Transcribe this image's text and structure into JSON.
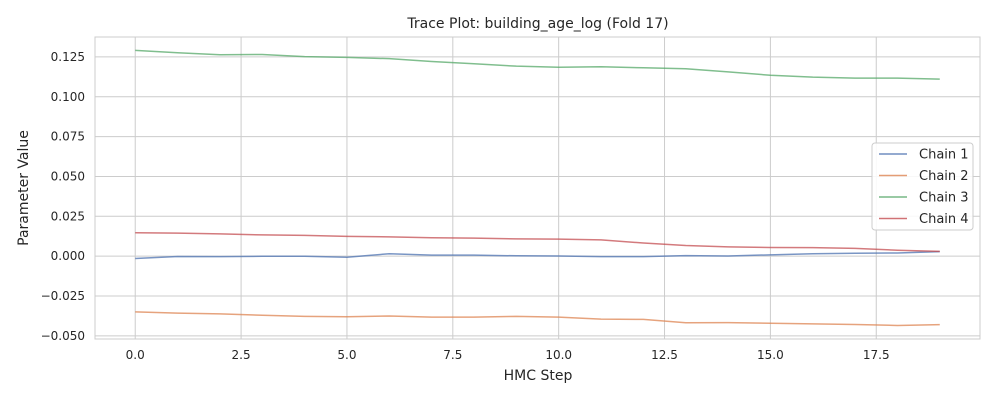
{
  "chart_data": {
    "type": "line",
    "title": "Trace Plot: building_age_log (Fold 17)",
    "xlabel": "HMC Step",
    "ylabel": "Parameter Value",
    "xlim": [
      -0.95,
      19.95
    ],
    "ylim": [
      -0.052,
      0.1375
    ],
    "xticks": [
      0.0,
      2.5,
      5.0,
      7.5,
      10.0,
      12.5,
      15.0,
      17.5
    ],
    "xtick_labels": [
      "0.0",
      "2.5",
      "5.0",
      "7.5",
      "10.0",
      "12.5",
      "15.0",
      "17.5"
    ],
    "yticks": [
      -0.05,
      -0.025,
      0.0,
      0.025,
      0.05,
      0.075,
      0.1,
      0.125
    ],
    "ytick_labels": [
      "−0.050",
      "−0.025",
      "0.000",
      "0.025",
      "0.050",
      "0.075",
      "0.100",
      "0.125"
    ],
    "grid": true,
    "legend_position": "center-right",
    "x": [
      0,
      1,
      2,
      3,
      4,
      5,
      6,
      7,
      8,
      9,
      10,
      11,
      12,
      13,
      14,
      15,
      16,
      17,
      18,
      19
    ],
    "series": [
      {
        "name": "Chain 1",
        "color": "#4c72b0",
        "values": [
          -0.0015,
          -0.0002,
          -0.0003,
          -0.0001,
          -0.0001,
          -0.0007,
          0.0015,
          0.0006,
          0.0006,
          0.0002,
          0.0001,
          -0.0003,
          -0.0003,
          0.0003,
          0.0001,
          0.0008,
          0.0015,
          0.0018,
          0.002,
          0.0028
        ]
      },
      {
        "name": "Chain 2",
        "color": "#dd8452",
        "values": [
          -0.035,
          -0.0358,
          -0.0362,
          -0.0371,
          -0.0378,
          -0.038,
          -0.0376,
          -0.0383,
          -0.0383,
          -0.0378,
          -0.0383,
          -0.0395,
          -0.0397,
          -0.0418,
          -0.0417,
          -0.0421,
          -0.0425,
          -0.0429,
          -0.0435,
          -0.043
        ]
      },
      {
        "name": "Chain 3",
        "color": "#55a868",
        "values": [
          0.1291,
          0.1276,
          0.1264,
          0.1265,
          0.1252,
          0.1247,
          0.1239,
          0.1221,
          0.1207,
          0.1192,
          0.1185,
          0.1188,
          0.1182,
          0.1176,
          0.1156,
          0.1135,
          0.1123,
          0.1117,
          0.1117,
          0.1111
        ]
      },
      {
        "name": "Chain 4",
        "color": "#c44e52",
        "values": [
          0.0147,
          0.0144,
          0.014,
          0.0133,
          0.013,
          0.0124,
          0.0121,
          0.0115,
          0.0113,
          0.0108,
          0.0107,
          0.0102,
          0.0082,
          0.0067,
          0.0058,
          0.0054,
          0.0053,
          0.0049,
          0.0037,
          0.003
        ]
      }
    ]
  }
}
